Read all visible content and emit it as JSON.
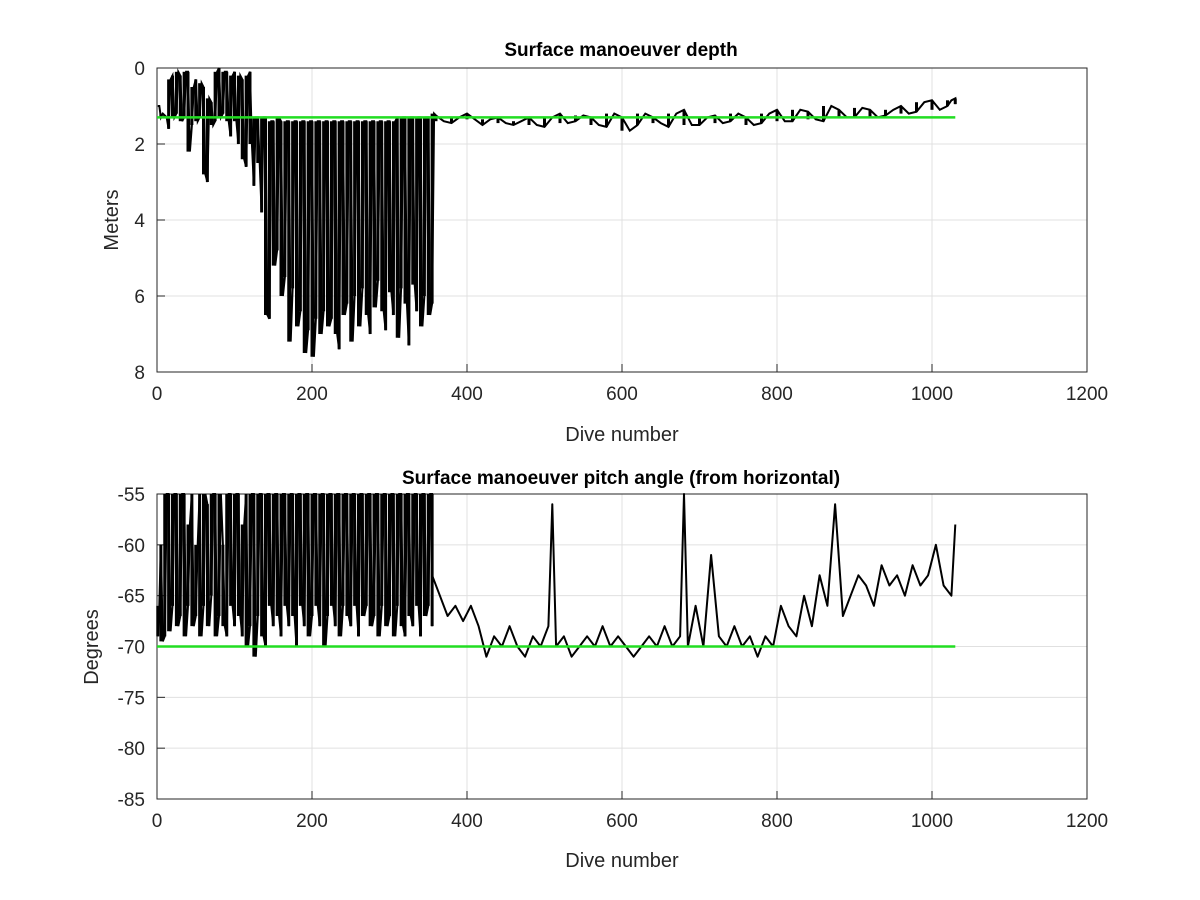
{
  "chart_data": [
    {
      "type": "line",
      "title": "Surface manoeuver depth",
      "xlabel": "Dive number",
      "ylabel": "Meters",
      "xlim": [
        0,
        1200
      ],
      "ylim": [
        0,
        8
      ],
      "y_reversed": true,
      "grid": true,
      "xticks": [
        "0",
        "200",
        "400",
        "600",
        "800",
        "1000",
        "1200"
      ],
      "yticks": [
        "0",
        "2",
        "4",
        "6",
        "8"
      ],
      "colors": {
        "measured": "#000000",
        "reference": "#22dd22",
        "grid": "#e0e0e0",
        "axes": "#262626"
      },
      "series": [
        {
          "x": [
            1,
            5,
            10,
            15,
            20,
            25,
            30,
            35,
            40,
            45,
            50,
            55,
            60,
            65,
            70,
            75,
            80,
            85,
            90,
            95,
            100,
            105,
            110,
            115,
            120,
            125,
            130,
            135,
            140,
            145,
            150,
            155,
            160,
            165,
            170,
            175,
            180,
            185,
            190,
            195,
            200,
            205,
            210,
            215,
            220,
            225,
            230,
            235,
            240,
            245,
            250,
            255,
            260,
            265,
            270,
            275,
            280,
            285,
            290,
            295,
            300,
            305,
            310,
            315,
            320,
            325,
            330,
            335,
            340,
            345,
            350,
            355,
            360,
            380,
            400,
            420,
            440,
            460,
            480,
            500,
            520,
            540,
            560,
            580,
            600,
            620,
            640,
            660,
            680,
            700,
            720,
            740,
            760,
            780,
            800,
            820,
            840,
            860,
            880,
            900,
            920,
            940,
            960,
            980,
            1000,
            1020,
            1030
          ],
          "min": [
            1.0,
            1.2,
            1.25,
            0.3,
            0.2,
            0.1,
            0.2,
            0.1,
            0.1,
            0.5,
            0.3,
            0.4,
            0.5,
            0.8,
            0.9,
            0.1,
            0.0,
            0.1,
            0.1,
            0.2,
            0.1,
            0.2,
            0.3,
            0.2,
            0.1,
            1.3,
            1.3,
            1.3,
            1.3,
            1.4,
            1.4,
            1.3,
            1.4,
            1.4,
            1.4,
            1.4,
            1.4,
            1.4,
            1.4,
            1.4,
            1.4,
            1.4,
            1.4,
            1.4,
            1.4,
            1.4,
            1.4,
            1.4,
            1.4,
            1.4,
            1.4,
            1.4,
            1.4,
            1.4,
            1.4,
            1.4,
            1.4,
            1.4,
            1.4,
            1.4,
            1.4,
            1.4,
            1.3,
            1.3,
            1.3,
            1.3,
            1.3,
            1.3,
            1.3,
            1.3,
            1.3,
            1.2,
            1.25,
            1.3,
            1.2,
            1.35,
            1.3,
            1.4,
            1.3,
            1.3,
            1.2,
            1.25,
            1.3,
            1.2,
            1.3,
            1.2,
            1.3,
            1.2,
            1.1,
            1.3,
            1.25,
            1.2,
            1.3,
            1.2,
            1.1,
            1.1,
            1.15,
            1.0,
            1.1,
            1.05,
            1.1,
            1.1,
            1.0,
            0.9,
            0.85,
            0.85,
            0.8
          ],
          "max": [
            1.0,
            1.3,
            1.3,
            1.6,
            1.3,
            1.2,
            1.4,
            1.3,
            2.2,
            1.5,
            1.4,
            1.3,
            2.8,
            3.0,
            1.5,
            1.4,
            1.3,
            1.2,
            1.4,
            1.8,
            1.4,
            2.0,
            2.4,
            2.6,
            2.0,
            3.1,
            2.5,
            3.8,
            6.5,
            6.6,
            5.2,
            4.8,
            6.0,
            5.5,
            7.2,
            5.8,
            6.8,
            6.4,
            7.5,
            6.9,
            7.6,
            6.6,
            7.0,
            6.4,
            6.8,
            6.6,
            7.0,
            7.4,
            6.5,
            6.2,
            7.2,
            6.0,
            6.8,
            5.8,
            6.5,
            7.0,
            6.3,
            5.6,
            6.4,
            6.9,
            5.9,
            6.5,
            7.1,
            5.8,
            6.2,
            7.3,
            5.7,
            6.4,
            6.8,
            6.0,
            6.5,
            6.2,
            1.4,
            1.45,
            1.35,
            1.5,
            1.45,
            1.5,
            1.5,
            1.55,
            1.45,
            1.4,
            1.5,
            1.55,
            1.65,
            1.5,
            1.45,
            1.55,
            1.5,
            1.5,
            1.45,
            1.4,
            1.5,
            1.45,
            1.4,
            1.4,
            1.35,
            1.4,
            1.3,
            1.3,
            1.3,
            1.25,
            1.2,
            1.15,
            1.1,
            1.0,
            0.95
          ]
        },
        {
          "x": [
            0,
            1030
          ],
          "y": [
            1.3,
            1.3
          ]
        }
      ]
    },
    {
      "type": "line",
      "title": "Surface manoeuver pitch angle (from horizontal)",
      "xlabel": "Dive number",
      "ylabel": "Degrees",
      "xlim": [
        0,
        1200
      ],
      "ylim": [
        -85,
        -55
      ],
      "grid": true,
      "xticks": [
        "0",
        "200",
        "400",
        "600",
        "800",
        "1000",
        "1200"
      ],
      "yticks": [
        "-55",
        "-60",
        "-65",
        "-70",
        "-75",
        "-80",
        "-85"
      ],
      "colors": {
        "measured": "#000000",
        "reference": "#22dd22",
        "grid": "#e0e0e0",
        "axes": "#262626"
      },
      "series": [
        {
          "x": [
            1,
            5,
            10,
            15,
            20,
            25,
            30,
            35,
            40,
            45,
            50,
            55,
            60,
            65,
            70,
            75,
            80,
            85,
            90,
            95,
            100,
            105,
            110,
            115,
            120,
            125,
            130,
            135,
            140,
            145,
            150,
            155,
            160,
            165,
            170,
            175,
            180,
            185,
            190,
            195,
            200,
            205,
            210,
            215,
            220,
            225,
            230,
            235,
            240,
            245,
            250,
            255,
            260,
            265,
            270,
            275,
            280,
            285,
            290,
            295,
            300,
            305,
            310,
            315,
            320,
            325,
            330,
            335,
            340,
            345,
            350,
            355
          ],
          "min": [
            -69,
            -69.5,
            -69,
            -68.5,
            -66,
            -68,
            -67,
            -69,
            -66,
            -68,
            -67,
            -69,
            -66,
            -68,
            -65,
            -69,
            -67,
            -68,
            -69,
            -66,
            -68,
            -67,
            -69,
            -70,
            -68,
            -71,
            -67,
            -69,
            -70,
            -66,
            -68,
            -67,
            -69,
            -66,
            -68,
            -67,
            -70,
            -66,
            -68,
            -69,
            -67,
            -66,
            -68,
            -70,
            -67,
            -66,
            -68,
            -69,
            -66,
            -67,
            -68,
            -66,
            -69,
            -67,
            -66,
            -68,
            -67,
            -69,
            -66,
            -68,
            -67,
            -69,
            -66,
            -68,
            -69,
            -67,
            -68,
            -66,
            -69,
            -67,
            -66,
            -68
          ],
          "max": [
            -66,
            -60,
            -55,
            -55,
            -55,
            -55,
            -55,
            -55,
            -58,
            -55,
            -60,
            -55,
            -55,
            -56,
            -55,
            -55,
            -55,
            -60,
            -55,
            -55,
            -55,
            -55,
            -58,
            -55,
            -55,
            -55,
            -55,
            -55,
            -55,
            -55,
            -55,
            -55,
            -55,
            -55,
            -55,
            -55,
            -55,
            -55,
            -55,
            -55,
            -55,
            -55,
            -55,
            -55,
            -55,
            -55,
            -55,
            -55,
            -55,
            -55,
            -55,
            -55,
            -55,
            -55,
            -55,
            -55,
            -55,
            -55,
            -55,
            -55,
            -55,
            -55,
            -55,
            -55,
            -55,
            -55,
            -55,
            -55,
            -55,
            -55,
            -55,
            -55
          ]
        },
        {
          "x": [
            355,
            365,
            375,
            385,
            395,
            405,
            415,
            425,
            435,
            445,
            455,
            465,
            475,
            485,
            495,
            505,
            510,
            515,
            525,
            535,
            545,
            555,
            565,
            575,
            585,
            595,
            605,
            615,
            625,
            635,
            645,
            655,
            665,
            675,
            680,
            685,
            695,
            705,
            715,
            725,
            735,
            745,
            755,
            765,
            775,
            785,
            795,
            805,
            815,
            825,
            835,
            845,
            855,
            865,
            875,
            885,
            895,
            905,
            915,
            925,
            935,
            945,
            955,
            965,
            975,
            985,
            995,
            1005,
            1015,
            1025,
            1030
          ],
          "y": [
            -63,
            -65,
            -67,
            -66,
            -67.5,
            -66,
            -68,
            -71,
            -69,
            -70,
            -68,
            -70,
            -71,
            -69,
            -70,
            -68,
            -56,
            -70,
            -69,
            -71,
            -70,
            -69,
            -70,
            -68,
            -70,
            -69,
            -70,
            -71,
            -70,
            -69,
            -70,
            -68,
            -70,
            -69,
            -55,
            -70,
            -66,
            -70,
            -61,
            -69,
            -70,
            -68,
            -70,
            -69,
            -71,
            -69,
            -70,
            -66,
            -68,
            -69,
            -65,
            -68,
            -63,
            -66,
            -56,
            -67,
            -65,
            -63,
            -64,
            -66,
            -62,
            -64,
            -63,
            -65,
            -62,
            -64,
            -63,
            -60,
            -64,
            -65,
            -58
          ]
        },
        {
          "x": [
            0,
            1030
          ],
          "y": [
            -70,
            -70
          ]
        }
      ]
    }
  ]
}
